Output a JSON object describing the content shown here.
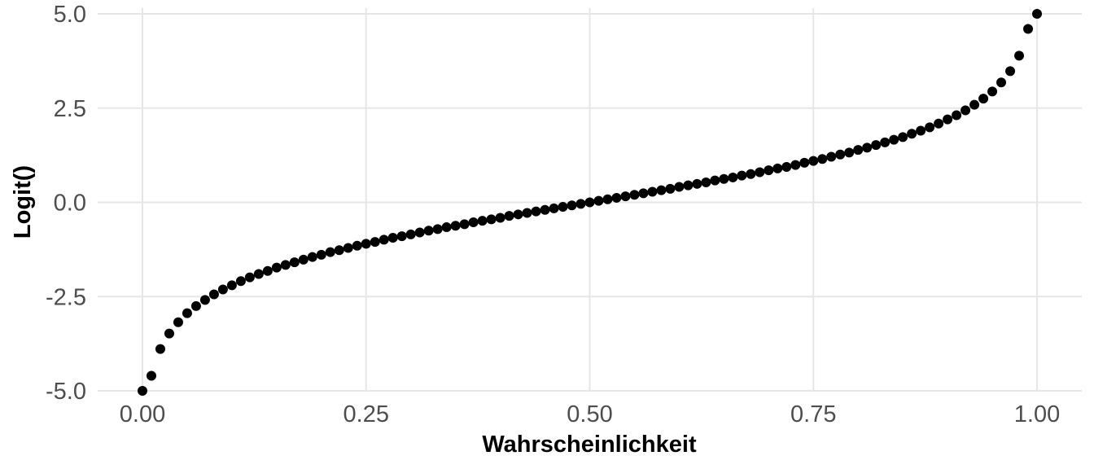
{
  "chart_data": {
    "type": "scatter",
    "title": "",
    "xlabel": "Wahrscheinlichkeit",
    "ylabel": "Logit()",
    "xlim": [
      -0.05,
      1.05
    ],
    "ylim": [
      -5.0,
      5.0
    ],
    "x_ticks": [
      0.0,
      0.25,
      0.5,
      0.75,
      1.0
    ],
    "x_tick_labels": [
      "0.00",
      "0.25",
      "0.50",
      "0.75",
      "1.00"
    ],
    "y_ticks": [
      -5.0,
      -2.5,
      0.0,
      2.5,
      5.0
    ],
    "y_tick_labels": [
      "-5.0",
      "-2.5",
      "0.0",
      "2.5",
      "5.0"
    ],
    "grid": true,
    "point_color": "#000000",
    "grid_color": "#e6e6e6",
    "x": [
      0.0,
      0.01,
      0.02,
      0.03,
      0.04,
      0.05,
      0.06,
      0.07,
      0.08,
      0.09,
      0.1,
      0.11,
      0.12,
      0.13,
      0.14,
      0.15,
      0.16,
      0.17,
      0.18,
      0.19,
      0.2,
      0.21,
      0.22,
      0.23,
      0.24,
      0.25,
      0.26,
      0.27,
      0.28,
      0.29,
      0.3,
      0.31,
      0.32,
      0.33,
      0.34,
      0.35,
      0.36,
      0.37,
      0.38,
      0.39,
      0.4,
      0.41,
      0.42,
      0.43,
      0.44,
      0.45,
      0.46,
      0.47,
      0.48,
      0.49,
      0.5,
      0.51,
      0.52,
      0.53,
      0.54,
      0.55,
      0.56,
      0.57,
      0.58,
      0.59,
      0.6,
      0.61,
      0.62,
      0.63,
      0.64,
      0.65,
      0.66,
      0.67,
      0.68,
      0.69,
      0.7,
      0.71,
      0.72,
      0.73,
      0.74,
      0.75,
      0.76,
      0.77,
      0.78,
      0.79,
      0.8,
      0.81,
      0.82,
      0.83,
      0.84,
      0.85,
      0.86,
      0.87,
      0.88,
      0.89,
      0.9,
      0.91,
      0.92,
      0.93,
      0.94,
      0.95,
      0.96,
      0.97,
      0.98,
      0.99,
      1.0
    ],
    "y": [
      -5.0,
      -4.6,
      -3.89,
      -3.48,
      -3.18,
      -2.94,
      -2.75,
      -2.59,
      -2.44,
      -2.31,
      -2.2,
      -2.09,
      -1.99,
      -1.9,
      -1.82,
      -1.73,
      -1.66,
      -1.59,
      -1.52,
      -1.45,
      -1.39,
      -1.32,
      -1.27,
      -1.21,
      -1.15,
      -1.1,
      -1.05,
      -0.99,
      -0.94,
      -0.9,
      -0.85,
      -0.8,
      -0.75,
      -0.71,
      -0.66,
      -0.62,
      -0.58,
      -0.53,
      -0.49,
      -0.45,
      -0.41,
      -0.36,
      -0.32,
      -0.28,
      -0.24,
      -0.2,
      -0.16,
      -0.12,
      -0.08,
      -0.04,
      0.0,
      0.04,
      0.08,
      0.12,
      0.16,
      0.2,
      0.24,
      0.28,
      0.32,
      0.36,
      0.41,
      0.45,
      0.49,
      0.53,
      0.58,
      0.62,
      0.66,
      0.71,
      0.75,
      0.8,
      0.85,
      0.9,
      0.94,
      0.99,
      1.05,
      1.1,
      1.15,
      1.21,
      1.27,
      1.32,
      1.39,
      1.45,
      1.52,
      1.59,
      1.66,
      1.73,
      1.82,
      1.9,
      1.99,
      2.09,
      2.2,
      2.31,
      2.44,
      2.59,
      2.75,
      2.94,
      3.18,
      3.48,
      3.89,
      4.6,
      5.0
    ]
  }
}
